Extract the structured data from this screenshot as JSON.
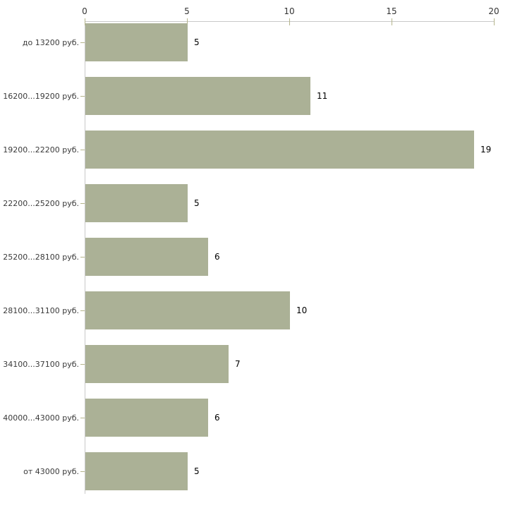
{
  "chart_data": {
    "type": "bar",
    "orientation": "horizontal",
    "title": "",
    "xlabel": "",
    "ylabel": "",
    "categories": [
      "до 13200 руб.",
      "16200...19200 руб.",
      "19200...22200 руб.",
      "22200...25200 руб.",
      "25200...28100 руб.",
      "28100...31100 руб.",
      "34100...37100 руб.",
      "40000...43000 руб.",
      "от 43000 руб."
    ],
    "values": [
      5,
      11,
      19,
      5,
      6,
      10,
      7,
      6,
      5
    ],
    "value_labels": [
      "5",
      "11",
      "19",
      "5",
      "6",
      "10",
      "7",
      "6",
      "5"
    ],
    "x_ticks": [
      0,
      5,
      10,
      15,
      20
    ],
    "xlim": [
      0,
      20
    ],
    "grid": false,
    "legend": null,
    "colors": {
      "bar_fill": "#abb196",
      "axis_line": "#c9c9c9",
      "tick_mark": "#b5b58c",
      "tick_label": "#333333",
      "category_label": "#3a3a3a",
      "value_label": "#000000",
      "background": "#ffffff"
    }
  }
}
